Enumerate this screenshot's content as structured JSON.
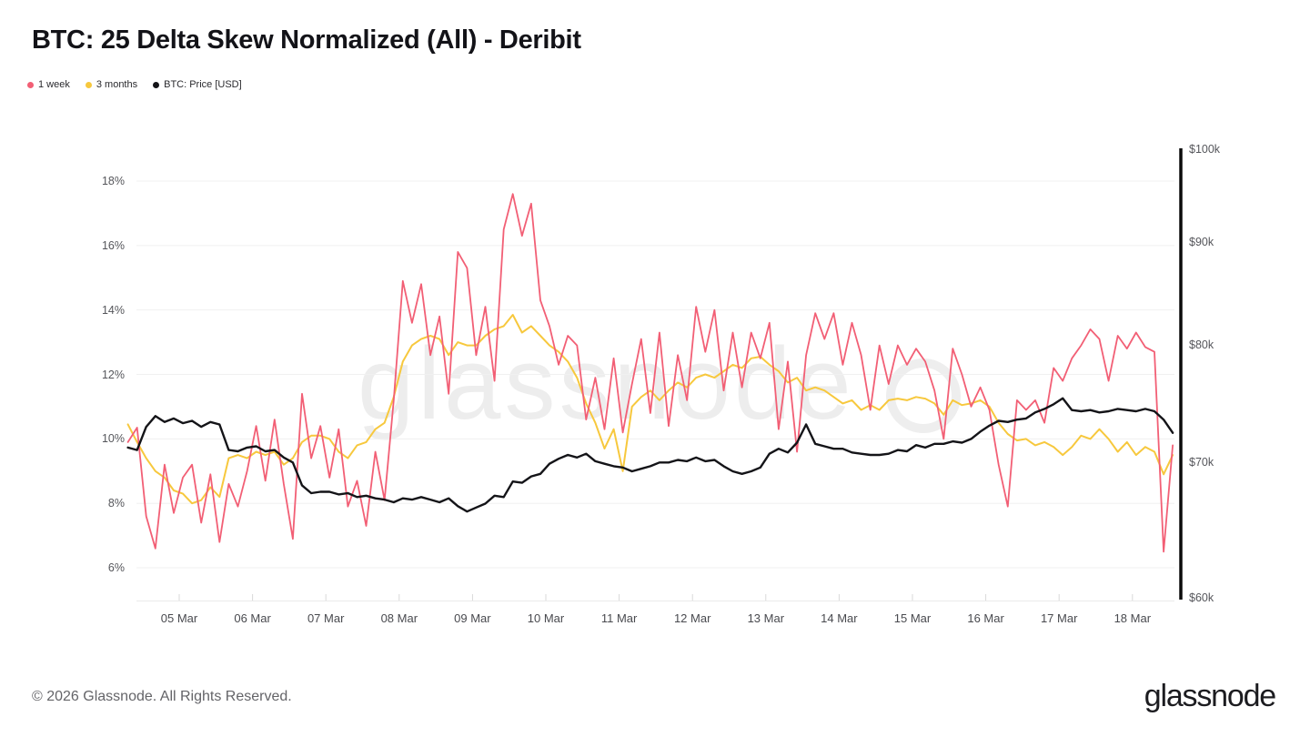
{
  "title": "BTC: 25 Delta Skew Normalized (All) - Deribit",
  "legend": [
    {
      "label": "1 week",
      "color": "#f25f75"
    },
    {
      "label": "3 months",
      "color": "#f7c83d"
    },
    {
      "label": "BTC: Price [USD]",
      "color": "#141418"
    }
  ],
  "watermark": {
    "text": "glassnode"
  },
  "footer": {
    "copyright": "© 2026 Glassnode. All Rights Reserved.",
    "logo_text": "glassnode"
  },
  "colors": {
    "pink": "#f25f75",
    "yellow": "#f7c83d",
    "black": "#141418",
    "grid": "#f0f0f0",
    "x_axis_line": "#eaeaea",
    "tick": "#d8d8d8",
    "right_axis_line": "#0b0b0b"
  },
  "chart_data": {
    "type": "line",
    "x_axis": {
      "unit": "date (March 2025 shown as day number)",
      "tick_days": [
        5,
        6,
        7,
        8,
        9,
        10,
        11,
        12,
        13,
        14,
        15,
        16,
        17,
        18
      ],
      "tick_labels": [
        "05 Mar",
        "06 Mar",
        "07 Mar",
        "08 Mar",
        "09 Mar",
        "10 Mar",
        "11 Mar",
        "12 Mar",
        "13 Mar",
        "14 Mar",
        "15 Mar",
        "16 Mar",
        "17 Mar",
        "18 Mar"
      ],
      "x_start": 4.3,
      "x_step": 0.125,
      "x_count": 115
    },
    "left_axis": {
      "unit": "%",
      "tick_values": [
        18,
        16,
        14,
        12,
        10,
        8,
        6
      ],
      "tick_labels": [
        "18%",
        "16%",
        "14%",
        "12%",
        "10%",
        "8%",
        "6%"
      ],
      "range": [
        5,
        19
      ],
      "grid": true
    },
    "right_axis": {
      "unit": "USD thousands",
      "scale": "log",
      "tick_values": [
        100,
        90,
        80,
        70,
        60
      ],
      "tick_labels": [
        "$100k",
        "$90k",
        "$80k",
        "$70k",
        "$60k"
      ],
      "range": [
        60,
        100
      ],
      "grid": false
    },
    "legend_position": "top-left",
    "series": [
      {
        "name": "1 week",
        "axis": "left",
        "unit": "%",
        "color": "#f25f75",
        "values": [
          9.9,
          10.35,
          7.6,
          6.6,
          9.2,
          7.7,
          8.8,
          9.2,
          7.4,
          8.9,
          6.8,
          8.6,
          7.9,
          9.0,
          10.4,
          8.7,
          10.6,
          8.6,
          6.9,
          11.4,
          9.4,
          10.4,
          8.8,
          10.3,
          7.9,
          8.7,
          7.3,
          9.6,
          8.1,
          11.2,
          14.9,
          13.6,
          14.8,
          12.6,
          13.8,
          11.4,
          15.8,
          15.3,
          12.6,
          14.1,
          11.8,
          16.5,
          17.6,
          16.3,
          17.3,
          14.3,
          13.5,
          12.3,
          13.2,
          12.9,
          10.6,
          11.9,
          10.3,
          12.5,
          10.2,
          11.7,
          13.1,
          10.8,
          13.3,
          10.4,
          12.6,
          11.2,
          14.1,
          12.7,
          14.0,
          11.5,
          13.3,
          11.6,
          13.3,
          12.5,
          13.6,
          10.3,
          12.4,
          9.6,
          12.6,
          13.9,
          13.1,
          13.9,
          12.3,
          13.6,
          12.6,
          10.9,
          12.9,
          11.7,
          12.9,
          12.3,
          12.8,
          12.4,
          11.5,
          10.0,
          12.8,
          12.0,
          11.0,
          11.6,
          10.9,
          9.2,
          7.9,
          11.2,
          10.9,
          11.2,
          10.5,
          12.2,
          11.8,
          12.5,
          12.9,
          13.4,
          13.1,
          11.8,
          13.2,
          12.8,
          13.3,
          12.85,
          12.7,
          6.5,
          9.8
        ]
      },
      {
        "name": "3 months",
        "axis": "left",
        "unit": "%",
        "color": "#f7c83d",
        "values": [
          10.45,
          9.9,
          9.4,
          9.0,
          8.8,
          8.4,
          8.3,
          8.0,
          8.1,
          8.5,
          8.2,
          9.4,
          9.5,
          9.4,
          9.6,
          9.5,
          9.6,
          9.2,
          9.4,
          9.9,
          10.1,
          10.1,
          10.0,
          9.6,
          9.4,
          9.8,
          9.9,
          10.3,
          10.5,
          11.3,
          12.4,
          12.9,
          13.1,
          13.2,
          13.1,
          12.6,
          13.0,
          12.9,
          12.9,
          13.2,
          13.4,
          13.5,
          13.85,
          13.3,
          13.5,
          13.2,
          12.9,
          12.7,
          12.4,
          11.9,
          11.1,
          10.5,
          9.7,
          10.3,
          9.0,
          11.0,
          11.3,
          11.5,
          11.2,
          11.5,
          11.75,
          11.6,
          11.9,
          12.0,
          11.9,
          12.1,
          12.3,
          12.2,
          12.5,
          12.55,
          12.3,
          12.1,
          11.75,
          11.9,
          11.5,
          11.6,
          11.5,
          11.3,
          11.1,
          11.2,
          10.9,
          11.05,
          10.9,
          11.2,
          11.25,
          11.2,
          11.3,
          11.25,
          11.1,
          10.75,
          11.2,
          11.05,
          11.1,
          11.2,
          11.0,
          10.5,
          10.15,
          9.95,
          10.0,
          9.8,
          9.9,
          9.75,
          9.5,
          9.75,
          10.1,
          10.0,
          10.3,
          10.0,
          9.6,
          9.9,
          9.5,
          9.75,
          9.6,
          8.9,
          9.5
        ]
      },
      {
        "name": "BTC: Price [USD]",
        "axis": "right",
        "unit": "USD thousands",
        "color": "#141418",
        "values": [
          71.2,
          71.0,
          72.9,
          73.8,
          73.3,
          73.6,
          73.2,
          73.4,
          72.9,
          73.3,
          73.1,
          71.0,
          70.9,
          71.2,
          71.3,
          70.9,
          71.0,
          70.4,
          70.0,
          68.2,
          67.6,
          67.7,
          67.7,
          67.5,
          67.6,
          67.3,
          67.4,
          67.2,
          67.1,
          66.9,
          67.2,
          67.1,
          67.3,
          67.1,
          66.9,
          67.2,
          66.6,
          66.2,
          66.5,
          66.8,
          67.4,
          67.3,
          68.5,
          68.4,
          68.9,
          69.1,
          69.9,
          70.3,
          70.6,
          70.4,
          70.7,
          70.1,
          69.9,
          69.7,
          69.6,
          69.3,
          69.5,
          69.7,
          70.0,
          70.0,
          70.2,
          70.1,
          70.4,
          70.1,
          70.2,
          69.7,
          69.3,
          69.1,
          69.3,
          69.6,
          70.7,
          71.1,
          70.8,
          71.6,
          73.1,
          71.5,
          71.3,
          71.1,
          71.1,
          70.8,
          70.7,
          70.6,
          70.6,
          70.7,
          71.0,
          70.9,
          71.4,
          71.2,
          71.5,
          71.5,
          71.7,
          71.6,
          71.9,
          72.5,
          73.0,
          73.4,
          73.3,
          73.5,
          73.6,
          74.1,
          74.4,
          74.8,
          75.3,
          74.3,
          74.2,
          74.3,
          74.1,
          74.2,
          74.4,
          74.3,
          74.2,
          74.4,
          74.2,
          73.5,
          72.4
        ]
      }
    ]
  }
}
